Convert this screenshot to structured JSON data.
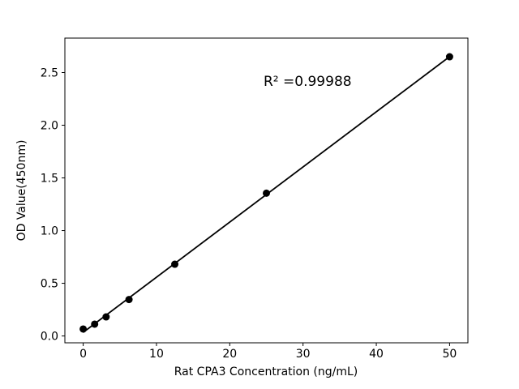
{
  "figure": {
    "background": "#ffffff"
  },
  "chart_data": {
    "type": "scatter",
    "title": "",
    "xlabel": "Rat CPA3 Concentration (ng/mL)",
    "ylabel": "OD Value(450nm)",
    "annotation": "R² =0.99988",
    "r_squared": 0.99988,
    "x": [
      0,
      1.5625,
      3.125,
      6.25,
      12.5,
      25,
      50
    ],
    "y": [
      0.066,
      0.112,
      0.181,
      0.346,
      0.681,
      1.355,
      2.65
    ],
    "fit_line": {
      "x": [
        0,
        50
      ],
      "y": [
        0.034,
        2.651
      ]
    },
    "xticks": {
      "values": [
        0,
        10,
        20,
        30,
        40,
        50
      ],
      "labels": [
        "0",
        "10",
        "20",
        "30",
        "40",
        "50"
      ]
    },
    "yticks": {
      "values": [
        0,
        0.5,
        1.0,
        1.5,
        2.0,
        2.5
      ],
      "labels": [
        "0.0",
        "0.5",
        "1.0",
        "1.5",
        "2.0",
        "2.5"
      ]
    },
    "xlim": [
      -2.5,
      52.5
    ],
    "ylim": [
      -0.065,
      2.827
    ],
    "grid": false,
    "legend": null,
    "marker_color": "#000000",
    "line_color": "#000000",
    "axis_color": "#000000",
    "text_color": "#000000"
  }
}
